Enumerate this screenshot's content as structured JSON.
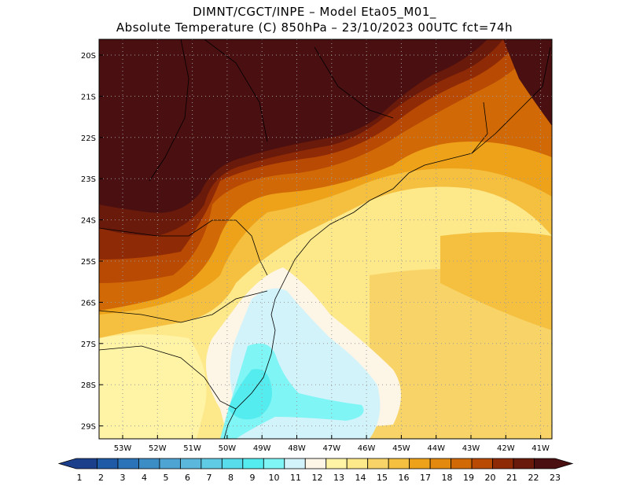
{
  "title_line1": "DIMNT/CGCT/INPE –  Model Eta05_M01_",
  "title_line2": "Absolute Temperature (C) 850hPa –  23/10/2023 00UTC fct=74h",
  "lat_labels": [
    "20S",
    "21S",
    "22S",
    "23S",
    "24S",
    "25S",
    "26S",
    "27S",
    "28S",
    "29S"
  ],
  "lon_labels": [
    "53W",
    "52W",
    "51W",
    "50W",
    "49W",
    "48W",
    "47W",
    "46W",
    "45W",
    "44W",
    "43W",
    "42W",
    "41W"
  ],
  "colorbar": {
    "labels": [
      "1",
      "2",
      "3",
      "4",
      "5",
      "6",
      "7",
      "8",
      "9",
      "10",
      "11",
      "12",
      "13",
      "14",
      "15",
      "16",
      "17",
      "18",
      "19",
      "20",
      "21",
      "22",
      "23"
    ],
    "colors": [
      "#1c3f8c",
      "#1f5aa6",
      "#2b73b8",
      "#3c8cc6",
      "#4ea4d2",
      "#5bb8dc",
      "#5fcbe4",
      "#58dbea",
      "#55ecf0",
      "#7ff5f5",
      "#d3f3fb",
      "#fdf5e6",
      "#fff3a6",
      "#fde88a",
      "#f8d468",
      "#f5c040",
      "#eea21a",
      "#e38a0e",
      "#d16a06",
      "#b84a04",
      "#8f2a06",
      "#6a1a0a",
      "#4a0f10"
    ]
  }
}
